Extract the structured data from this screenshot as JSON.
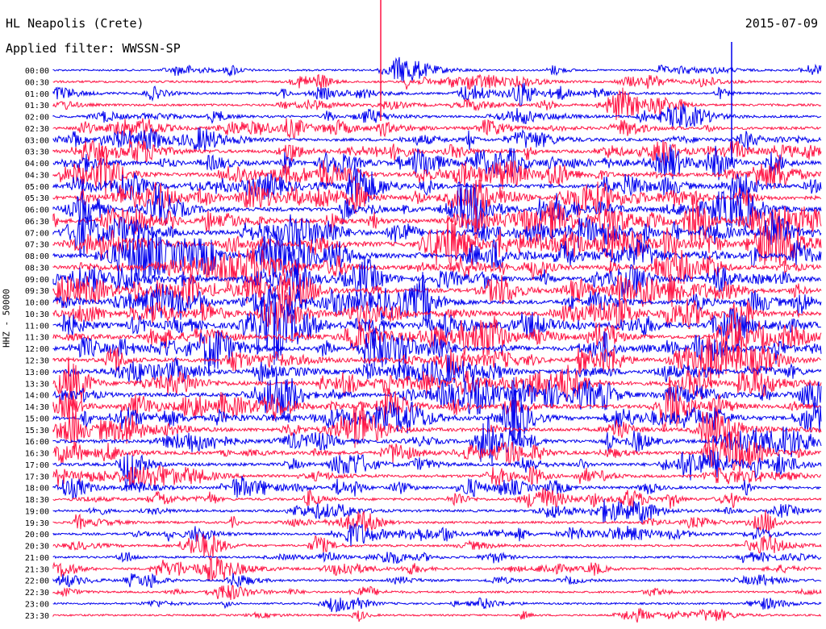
{
  "header": {
    "station": "HL Neapolis (Crete)",
    "date": "2015-07-09",
    "filter": "Applied filter: WWSSN-SP",
    "channel_label": "HHZ - 50000"
  },
  "colors": {
    "trace_a": "#0000ee",
    "trace_b": "#ff1444",
    "background": "#ffffff"
  },
  "chart_data": {
    "type": "line",
    "title": "HL Neapolis (Crete)",
    "subtitle": "Applied filter: WWSSN-SP",
    "ylabel": "HHZ - 50000",
    "xlabel": "",
    "grid": false,
    "legend": "none",
    "row_labels": [
      "00:00",
      "00:30",
      "01:00",
      "01:30",
      "02:00",
      "02:30",
      "03:00",
      "03:30",
      "04:00",
      "04:30",
      "05:00",
      "05:30",
      "06:00",
      "06:30",
      "07:00",
      "07:30",
      "08:00",
      "08:30",
      "09:00",
      "09:30",
      "10:00",
      "10:30",
      "11:00",
      "11:30",
      "12:00",
      "12:30",
      "13:00",
      "13:30",
      "14:00",
      "14:30",
      "15:00",
      "15:30",
      "16:00",
      "16:30",
      "17:00",
      "17:30",
      "18:00",
      "18:30",
      "19:00",
      "19:30",
      "20:00",
      "20:30",
      "21:00",
      "21:30",
      "22:00",
      "22:30",
      "23:00",
      "23:30"
    ],
    "row_colors_cycle": [
      "blue",
      "red"
    ],
    "row_activity": [
      0.15,
      0.25,
      0.3,
      0.3,
      0.35,
      0.45,
      0.5,
      0.6,
      0.7,
      0.75,
      0.8,
      0.85,
      0.9,
      0.95,
      0.95,
      0.95,
      0.95,
      0.9,
      0.9,
      0.85,
      0.85,
      0.85,
      0.85,
      0.85,
      0.85,
      0.85,
      0.8,
      0.8,
      0.8,
      0.75,
      0.75,
      0.7,
      0.7,
      0.65,
      0.6,
      0.5,
      0.45,
      0.4,
      0.35,
      0.3,
      0.3,
      0.28,
      0.25,
      0.25,
      0.2,
      0.2,
      0.18,
      0.15
    ],
    "notable_events": [
      {
        "row": 0,
        "time_frac": 0.46,
        "note": "large spike"
      },
      {
        "row": 20,
        "time_frac": 0.46,
        "note": "large event"
      },
      {
        "row": 40,
        "time_frac": 0.4,
        "note": "burst"
      },
      {
        "row": 43,
        "time_frac": 0.22,
        "note": "burst"
      }
    ]
  }
}
